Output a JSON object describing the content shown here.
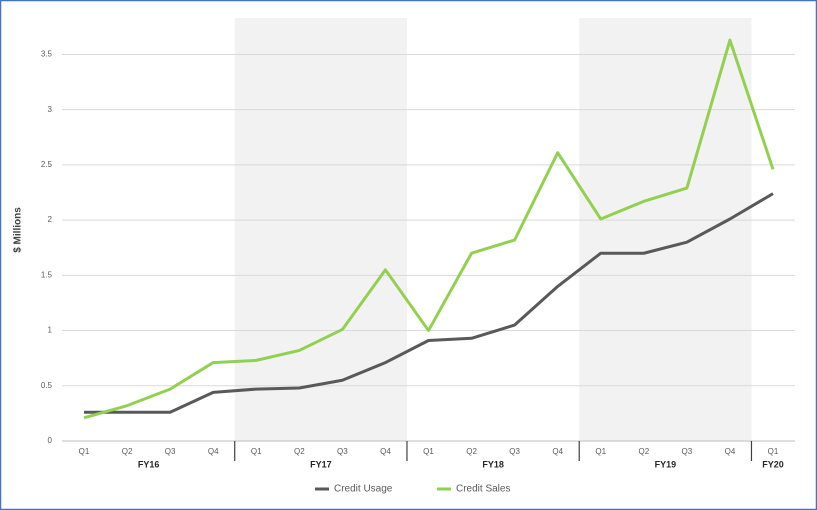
{
  "chart_data": {
    "type": "line",
    "y_label": "$ Millions",
    "categories": [
      "Q1",
      "Q2",
      "Q3",
      "Q4",
      "Q1",
      "Q2",
      "Q3",
      "Q4",
      "Q1",
      "Q2",
      "Q3",
      "Q4",
      "Q1",
      "Q2",
      "Q3",
      "Q4",
      "Q1"
    ],
    "groups": [
      {
        "label": "FY16",
        "size": 4
      },
      {
        "label": "FY17",
        "size": 4
      },
      {
        "label": "FY18",
        "size": 4
      },
      {
        "label": "FY19",
        "size": 4
      },
      {
        "label": "FY20",
        "size": 1
      }
    ],
    "series": [
      {
        "name": "Credit Usage",
        "color": "#595959",
        "values": [
          0.26,
          0.26,
          0.26,
          0.44,
          0.47,
          0.48,
          0.55,
          0.71,
          0.91,
          0.93,
          1.05,
          1.4,
          1.7,
          1.7,
          1.8,
          2.01,
          2.24
        ]
      },
      {
        "name": "Credit Sales",
        "color": "#92d050",
        "values": [
          0.21,
          0.32,
          0.47,
          0.71,
          0.73,
          0.82,
          1.01,
          1.55,
          1.0,
          1.7,
          1.82,
          2.61,
          2.01,
          2.17,
          2.29,
          3.63,
          2.46
        ]
      }
    ],
    "ylim": [
      0,
      3.83
    ],
    "yticks": [
      0,
      0.5,
      1,
      1.5,
      2,
      2.5,
      3,
      3.5
    ],
    "grid": true,
    "legend": "bottom"
  }
}
